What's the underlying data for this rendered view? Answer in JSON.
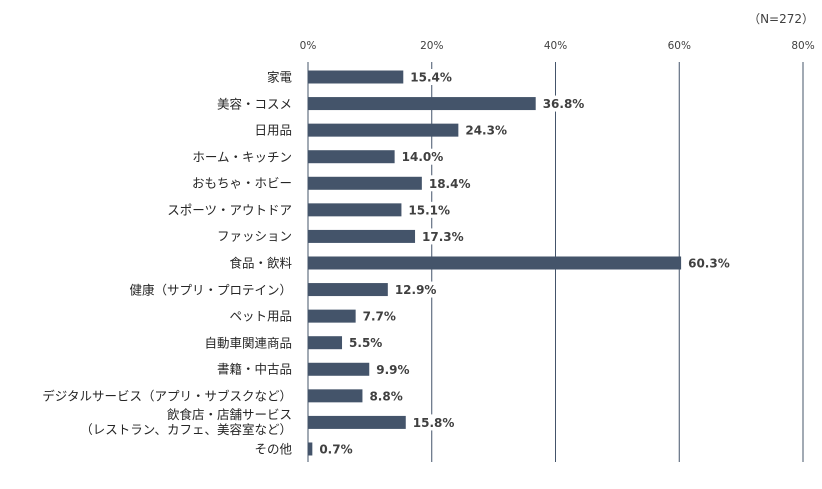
{
  "chart_data": {
    "type": "bar",
    "orientation": "horizontal",
    "note": "（N=272）",
    "categories": [
      "家電",
      "美容・コスメ",
      "日用品",
      "ホーム・キッチン",
      "おもちゃ・ホビー",
      "スポーツ・アウトドア",
      "ファッション",
      "食品・飲料",
      "健康（サプリ・プロテイン）",
      "ペット用品",
      "自動車関連商品",
      "書籍・中古品",
      "デジタルサービス（アプリ・サブスクなど）",
      "飲食店・店舗サービス\n（レストラン、カフェ、美容室など）",
      "その他"
    ],
    "values": [
      15.4,
      36.8,
      24.3,
      14.0,
      18.4,
      15.1,
      17.3,
      60.3,
      12.9,
      7.7,
      5.5,
      9.9,
      8.8,
      15.8,
      0.7
    ],
    "value_labels": [
      "15.4%",
      "36.8%",
      "24.3%",
      "14.0%",
      "18.4%",
      "15.1%",
      "17.3%",
      "60.3%",
      "12.9%",
      "7.7%",
      "5.5%",
      "9.9%",
      "8.8%",
      "15.8%",
      "0.7%"
    ],
    "color": "#44546a",
    "xlim": [
      0,
      80
    ],
    "xticks": [
      {
        "value": 0,
        "label": "0%"
      },
      {
        "value": 20,
        "label": "20%"
      },
      {
        "value": 40,
        "label": "40%"
      },
      {
        "value": 60,
        "label": "60%"
      },
      {
        "value": 80,
        "label": "80%"
      }
    ],
    "grid": true
  }
}
